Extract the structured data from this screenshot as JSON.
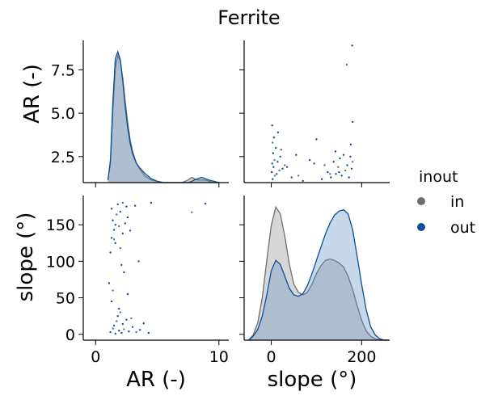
{
  "chart_data": {
    "type": "scatter",
    "title": "Ferrite",
    "legend": {
      "title": "inout",
      "placement": "right",
      "entries": [
        {
          "label": "in",
          "color": "#6e6e6e"
        },
        {
          "label": "out",
          "color": "#0b4f9c"
        }
      ]
    },
    "variables": [
      {
        "name": "AR",
        "label": "AR (-)",
        "range": [
          -1,
          10.8
        ],
        "ticks": [
          0,
          10
        ],
        "diag_ticks": [
          2.5,
          5.0,
          7.5
        ],
        "diag_tick_labels": [
          "2.5",
          "5.0",
          "7.5"
        ],
        "diag_range": [
          1.0,
          9.2
        ]
      },
      {
        "name": "slope",
        "label": "slope (°)",
        "range": [
          -60,
          262
        ],
        "ticks": [
          0,
          200
        ],
        "diag_ticks": [
          0,
          50,
          100,
          150
        ],
        "diag_tick_labels": [
          "0",
          "50",
          "100",
          "150"
        ],
        "diag_range": [
          -8,
          190
        ]
      }
    ],
    "kde_AR": {
      "x": [
        1.0,
        1.2,
        1.4,
        1.6,
        1.8,
        2.0,
        2.2,
        2.4,
        2.6,
        2.8,
        3.0,
        3.3,
        3.6,
        4.0,
        4.5,
        5.0,
        5.5,
        6.0,
        6.5,
        7.0,
        7.5,
        7.8,
        8.0,
        8.3,
        8.6,
        8.9,
        9.2,
        9.6,
        10.0
      ],
      "series": [
        {
          "name": "in",
          "values": [
            0.02,
            0.15,
            0.55,
            0.88,
            0.97,
            0.93,
            0.8,
            0.62,
            0.46,
            0.33,
            0.24,
            0.15,
            0.1,
            0.05,
            0.02,
            0.01,
            0.0,
            0.0,
            0.0,
            0.0,
            0.02,
            0.04,
            0.03,
            0.02,
            0.02,
            0.02,
            0.01,
            0.0,
            0.0
          ]
        },
        {
          "name": "out",
          "values": [
            0.02,
            0.17,
            0.62,
            0.95,
            1.0,
            0.94,
            0.78,
            0.58,
            0.42,
            0.3,
            0.22,
            0.15,
            0.11,
            0.07,
            0.03,
            0.01,
            0.0,
            0.0,
            0.0,
            0.0,
            0.0,
            0.01,
            0.02,
            0.03,
            0.04,
            0.03,
            0.02,
            0.01,
            0.0
          ]
        }
      ]
    },
    "kde_slope": {
      "x": [
        -50,
        -40,
        -30,
        -20,
        -10,
        0,
        10,
        20,
        30,
        40,
        50,
        60,
        70,
        80,
        90,
        100,
        110,
        120,
        130,
        140,
        150,
        160,
        170,
        180,
        190,
        200,
        210,
        220,
        230,
        240,
        250,
        260
      ],
      "series": [
        {
          "name": "in",
          "values": [
            0.0,
            0.04,
            0.13,
            0.32,
            0.6,
            0.86,
            1.0,
            0.95,
            0.78,
            0.57,
            0.42,
            0.36,
            0.34,
            0.36,
            0.42,
            0.5,
            0.56,
            0.6,
            0.61,
            0.6,
            0.58,
            0.55,
            0.48,
            0.38,
            0.26,
            0.15,
            0.07,
            0.03,
            0.01,
            0.0,
            0.0,
            0.0
          ]
        },
        {
          "name": "out",
          "values": [
            0.0,
            0.03,
            0.08,
            0.18,
            0.34,
            0.52,
            0.6,
            0.57,
            0.48,
            0.39,
            0.34,
            0.33,
            0.35,
            0.41,
            0.5,
            0.6,
            0.7,
            0.8,
            0.88,
            0.94,
            0.97,
            0.98,
            0.95,
            0.83,
            0.63,
            0.42,
            0.23,
            0.1,
            0.04,
            0.01,
            0.0,
            0.0
          ]
        }
      ]
    },
    "scatter_points": [
      {
        "AR": 1.2,
        "slope": 3,
        "g": "out"
      },
      {
        "AR": 1.4,
        "slope": 8,
        "g": "in"
      },
      {
        "AR": 1.5,
        "slope": 12,
        "g": "out"
      },
      {
        "AR": 1.6,
        "slope": 1,
        "g": "out"
      },
      {
        "AR": 1.7,
        "slope": 18,
        "g": "in"
      },
      {
        "AR": 1.8,
        "slope": 25,
        "g": "out"
      },
      {
        "AR": 1.9,
        "slope": 5,
        "g": "out"
      },
      {
        "AR": 2.0,
        "slope": 30,
        "g": "in"
      },
      {
        "AR": 2.1,
        "slope": 2,
        "g": "out"
      },
      {
        "AR": 2.2,
        "slope": 14,
        "g": "out"
      },
      {
        "AR": 2.3,
        "slope": 7,
        "g": "in"
      },
      {
        "AR": 2.5,
        "slope": 20,
        "g": "out"
      },
      {
        "AR": 2.7,
        "slope": 4,
        "g": "out"
      },
      {
        "AR": 3.0,
        "slope": 10,
        "g": "out"
      },
      {
        "AR": 3.3,
        "slope": 3,
        "g": "in"
      },
      {
        "AR": 3.6,
        "slope": 6,
        "g": "out"
      },
      {
        "AR": 4.3,
        "slope": 2,
        "g": "out"
      },
      {
        "AR": 2.6,
        "slope": 55,
        "g": "out"
      },
      {
        "AR": 1.3,
        "slope": 45,
        "g": "out"
      },
      {
        "AR": 1.1,
        "slope": 70,
        "g": "out"
      },
      {
        "AR": 2.3,
        "slope": 85,
        "g": "out"
      },
      {
        "AR": 3.5,
        "slope": 100,
        "g": "out"
      },
      {
        "AR": 1.2,
        "slope": 112,
        "g": "out"
      },
      {
        "AR": 2.0,
        "slope": 118,
        "g": "in"
      },
      {
        "AR": 1.6,
        "slope": 125,
        "g": "out"
      },
      {
        "AR": 1.3,
        "slope": 132,
        "g": "out"
      },
      {
        "AR": 2.2,
        "slope": 138,
        "g": "out"
      },
      {
        "AR": 1.5,
        "slope": 143,
        "g": "out"
      },
      {
        "AR": 1.9,
        "slope": 148,
        "g": "in"
      },
      {
        "AR": 2.4,
        "slope": 152,
        "g": "out"
      },
      {
        "AR": 1.4,
        "slope": 156,
        "g": "out"
      },
      {
        "AR": 2.6,
        "slope": 160,
        "g": "out"
      },
      {
        "AR": 1.7,
        "slope": 164,
        "g": "in"
      },
      {
        "AR": 2.0,
        "slope": 168,
        "g": "out"
      },
      {
        "AR": 1.3,
        "slope": 172,
        "g": "out"
      },
      {
        "AR": 2.5,
        "slope": 175,
        "g": "out"
      },
      {
        "AR": 1.8,
        "slope": 178,
        "g": "out"
      },
      {
        "AR": 2.2,
        "slope": 180,
        "g": "in"
      },
      {
        "AR": 4.5,
        "slope": 180,
        "g": "out"
      },
      {
        "AR": 7.8,
        "slope": 167,
        "g": "in"
      },
      {
        "AR": 8.9,
        "slope": 179,
        "g": "out"
      },
      {
        "AR": 3.2,
        "slope": 176,
        "g": "out"
      },
      {
        "AR": 1.6,
        "slope": 150,
        "g": "out"
      },
      {
        "AR": 2.8,
        "slope": 142,
        "g": "out"
      },
      {
        "AR": 1.5,
        "slope": 130,
        "g": "in"
      },
      {
        "AR": 2.1,
        "slope": 95,
        "g": "out"
      },
      {
        "AR": 1.4,
        "slope": 60,
        "g": "in"
      },
      {
        "AR": 3.9,
        "slope": 15,
        "g": "out"
      },
      {
        "AR": 2.9,
        "slope": 22,
        "g": "in"
      },
      {
        "AR": 1.9,
        "slope": 35,
        "g": "out"
      }
    ]
  }
}
